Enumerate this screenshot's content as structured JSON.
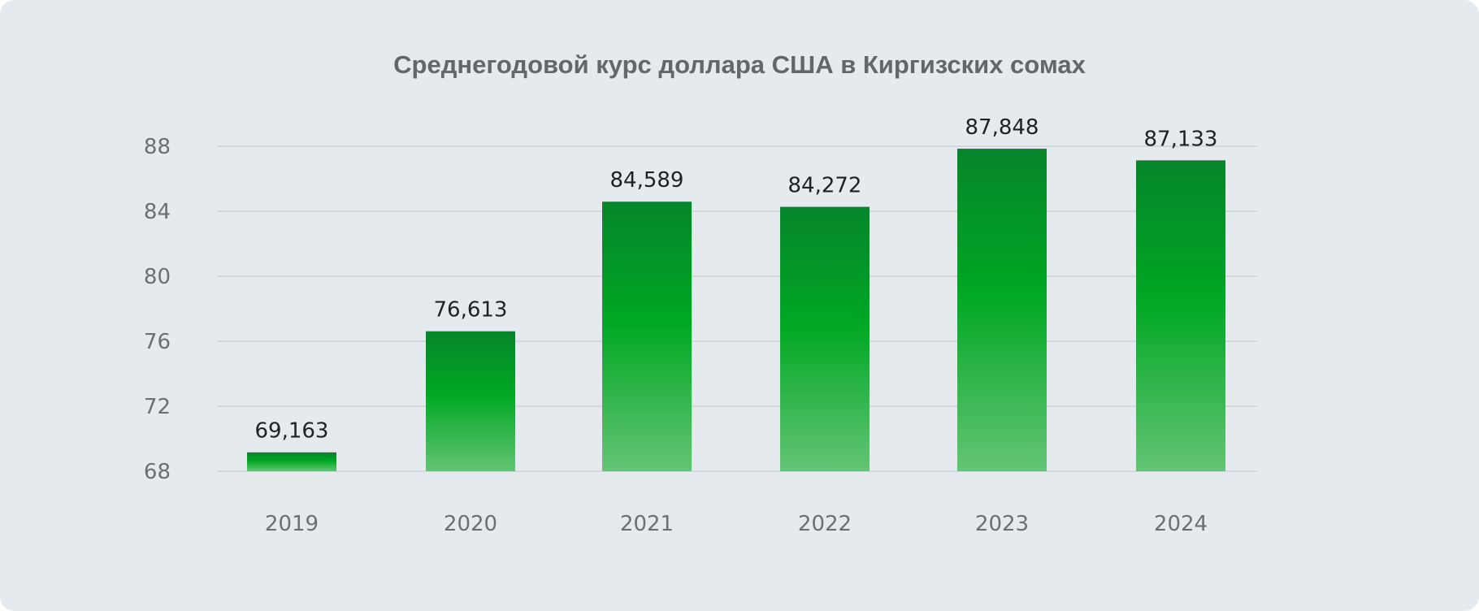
{
  "chart_data": {
    "type": "bar",
    "title": "Среднегодовой курс доллара США в Киргизских сомах",
    "xlabel": "",
    "ylabel": "",
    "categories": [
      "2019",
      "2020",
      "2021",
      "2022",
      "2023",
      "2024"
    ],
    "values": [
      69.163,
      76.613,
      84.589,
      84.272,
      87.848,
      87.133
    ],
    "value_labels": [
      "69,163",
      "76,613",
      "84,589",
      "84,272",
      "87,848",
      "87,133"
    ],
    "yticks": [
      68,
      72,
      76,
      80,
      84,
      88
    ],
    "ylim": [
      68,
      88
    ],
    "grid": true,
    "legend": "none",
    "colors": {
      "bar_top": "#05852a",
      "bar_mid": "#00a823",
      "bar_bottom": "#64c475",
      "grid": "#c8cdd1",
      "background": "#e5eaee"
    }
  }
}
